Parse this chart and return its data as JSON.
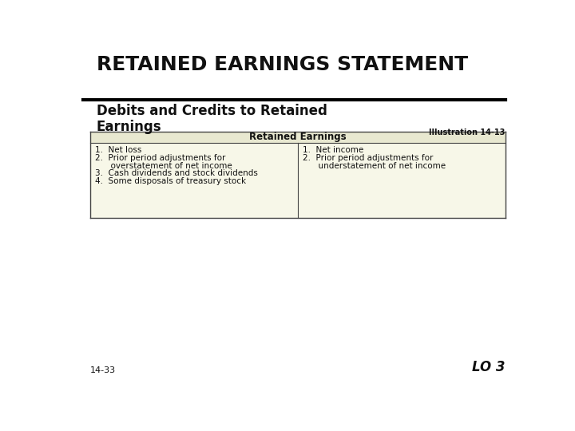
{
  "title": "RETAINED EARNINGS STATEMENT",
  "subtitle_line1": "Debits and Credits to Retained",
  "subtitle_line2": "Earnings",
  "illustration": "Illustration 14-13",
  "table_header": "Retained Earnings",
  "left_column_items": [
    "1.  Net loss",
    "2.  Prior period adjustments for",
    "      overstatement of net income",
    "3.  Cash dividends and stock dividends",
    "4.  Some disposals of treasury stock"
  ],
  "right_column_items": [
    "1.  Net income",
    "2.  Prior period adjustments for",
    "      understatement of net income"
  ],
  "footer_left": "14-33",
  "footer_right": "LO 3",
  "bg_color": "#ffffff",
  "table_bg_color": "#f7f7e8",
  "table_header_bg": "#e8e8d0",
  "title_fontsize": 18,
  "subtitle_fontsize": 12,
  "table_header_fontsize": 8.5,
  "table_body_fontsize": 7.5,
  "footer_fontsize": 8,
  "illus_fontsize": 7
}
